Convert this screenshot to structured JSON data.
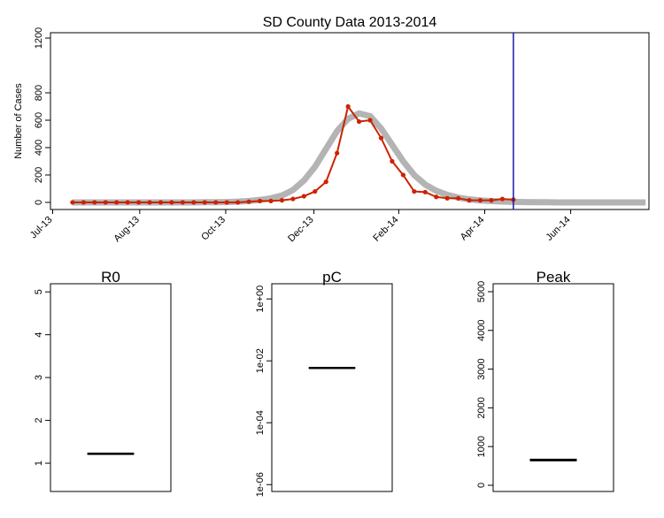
{
  "chart_data": [
    {
      "type": "line",
      "title": "SD County Data 2013-2014",
      "y_label": "Number of Cases",
      "xlim": [
        -2,
        52.3
      ],
      "ylim": [
        -52,
        1239
      ],
      "xticks": [
        {
          "value": -1.8,
          "label": "Jul-13"
        },
        {
          "value": 6.1,
          "label": "Aug-13"
        },
        {
          "value": 13.9,
          "label": "Oct-13"
        },
        {
          "value": 21.9,
          "label": "Dec-13"
        },
        {
          "value": 29.6,
          "label": "Feb-14"
        },
        {
          "value": 37.4,
          "label": "Apr-14"
        },
        {
          "value": 45.2,
          "label": "Jun-14"
        }
      ],
      "yticks": [
        0,
        200,
        400,
        600,
        800,
        1200
      ],
      "vline": 40,
      "vline_color": "#1a1aaa",
      "series": [
        {
          "color": "#b4b4b4",
          "line_width": 7,
          "markers": false,
          "x": [
            0,
            1,
            2,
            3,
            4,
            5,
            6,
            7,
            8,
            9,
            10,
            11,
            12,
            13,
            14,
            15,
            16,
            17,
            18,
            19,
            20,
            21,
            22,
            23,
            24,
            25,
            26,
            27,
            28,
            29,
            30,
            31,
            32,
            33,
            34,
            35,
            36,
            37,
            38,
            39,
            40,
            41,
            42,
            43,
            44,
            45,
            46,
            47,
            48,
            49,
            50,
            51,
            52
          ],
          "values": [
            0,
            0,
            0,
            0,
            0,
            0,
            0,
            0,
            0,
            0,
            0,
            0,
            1,
            1,
            2,
            5,
            10,
            18,
            30,
            50,
            90,
            160,
            260,
            390,
            520,
            610,
            650,
            630,
            540,
            420,
            300,
            200,
            130,
            85,
            55,
            35,
            22,
            14,
            9,
            6,
            4,
            2,
            1,
            1,
            0,
            0,
            0,
            0,
            0,
            0,
            0,
            0,
            0
          ]
        },
        {
          "color": "#cc2200",
          "line_width": 2,
          "markers": true,
          "x": [
            0,
            1,
            2,
            3,
            4,
            5,
            6,
            7,
            8,
            9,
            10,
            11,
            12,
            13,
            14,
            15,
            16,
            17,
            18,
            19,
            20,
            21,
            22,
            23,
            24,
            25,
            26,
            27,
            28,
            29,
            30,
            31,
            32,
            33,
            34,
            35,
            36,
            37,
            38,
            39,
            40
          ],
          "values": [
            0,
            0,
            0,
            0,
            0,
            0,
            0,
            0,
            0,
            0,
            0,
            0,
            0,
            0,
            0,
            0,
            5,
            10,
            10,
            15,
            25,
            45,
            80,
            150,
            360,
            700,
            590,
            600,
            470,
            300,
            200,
            80,
            75,
            40,
            30,
            30,
            15,
            15,
            15,
            25,
            20
          ]
        }
      ]
    },
    {
      "type": "box",
      "title": "R0",
      "ylim": [
        0.34,
        5.19
      ],
      "yticks": [
        1,
        2,
        3,
        4,
        5
      ],
      "color": "#000000",
      "q1": 1.21,
      "median": 1.22,
      "q3": 1.23
    },
    {
      "type": "box",
      "title": "pC",
      "log_scale": true,
      "ylim": [
        6e-07,
        3.1
      ],
      "yticks": [
        {
          "value": 1,
          "label": "1e+00"
        },
        {
          "value": 0.01,
          "label": "1e-02"
        },
        {
          "value": 0.0001,
          "label": "1e-04"
        },
        {
          "value": 1e-06,
          "label": "1e-06"
        }
      ],
      "color": "#000000",
      "q1": 0.0058,
      "median": 0.0059,
      "q3": 0.006
    },
    {
      "type": "box",
      "title": "Peak",
      "ylim": [
        -160,
        5205
      ],
      "yticks": [
        0,
        1000,
        2000,
        3000,
        4000,
        5000
      ],
      "color": "#000000",
      "q1": 630,
      "median": 655,
      "q3": 675
    }
  ]
}
